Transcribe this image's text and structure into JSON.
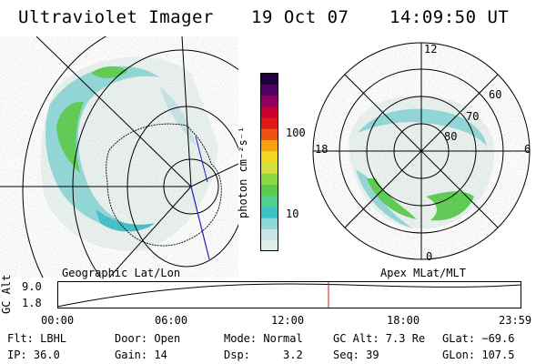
{
  "header": {
    "title": "Ultraviolet Imager",
    "date": "19 Oct 07",
    "time": "14:09:50 UT"
  },
  "geo_panel": {
    "label": "Geographic Lat/Lon"
  },
  "polar_panel": {
    "label": "Apex MLat/MLT",
    "mlt_labels": [
      "12",
      "18",
      "6",
      "0"
    ],
    "mlat_labels": [
      "60",
      "70",
      "80"
    ]
  },
  "colorbar": {
    "unit_label": "photon cm⁻²s⁻¹",
    "ticks": [
      "100",
      "10"
    ],
    "colors": [
      "#e0eee8",
      "#c8e4e6",
      "#8ed8d8",
      "#3cc0c8",
      "#50d090",
      "#58cc4c",
      "#8cd840",
      "#d4e040",
      "#f4d820",
      "#f8a010",
      "#f05010",
      "#e01818",
      "#c80030",
      "#900060",
      "#500060",
      "#200040"
    ]
  },
  "alt_plot": {
    "ylabel": "GC Alt",
    "y_ticks": [
      "9.0",
      "1.8"
    ],
    "x_ticks": [
      "00:00",
      "06:00",
      "12:00",
      "18:00",
      "23:59"
    ],
    "marker_color": "#d02020"
  },
  "status": {
    "flt": "Flt: LBHL",
    "ip": "IP: 36.0",
    "door": "Door: Open",
    "gain": "Gain: 14",
    "mode": "Mode: Normal",
    "dsp": "Dsp:     3.2",
    "gcalt": "GC Alt: 7.3 Re",
    "seq": "Seq: 39",
    "glat": "GLat: −69.6",
    "glon": "GLon: 107.5"
  }
}
